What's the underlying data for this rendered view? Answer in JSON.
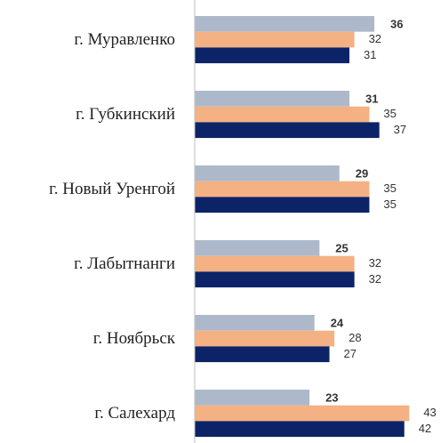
{
  "chart_data": {
    "type": "bar",
    "orientation": "horizontal",
    "categories": [
      "г. Муравленко",
      "г. Губкинский",
      "г. Новый Уренгой",
      "г. Лабытнанги",
      "г. Ноябрьск",
      "г. Салехард"
    ],
    "series": [
      {
        "color": "#adb9ca",
        "values": [
          36,
          31,
          29,
          25,
          24,
          23
        ]
      },
      {
        "color": "#f4b183",
        "values": [
          32,
          35,
          35,
          32,
          28,
          43
        ]
      },
      {
        "color": "#0c2367",
        "values": [
          31,
          37,
          35,
          32,
          27,
          42
        ]
      }
    ],
    "xlim": [
      0,
      49
    ]
  }
}
